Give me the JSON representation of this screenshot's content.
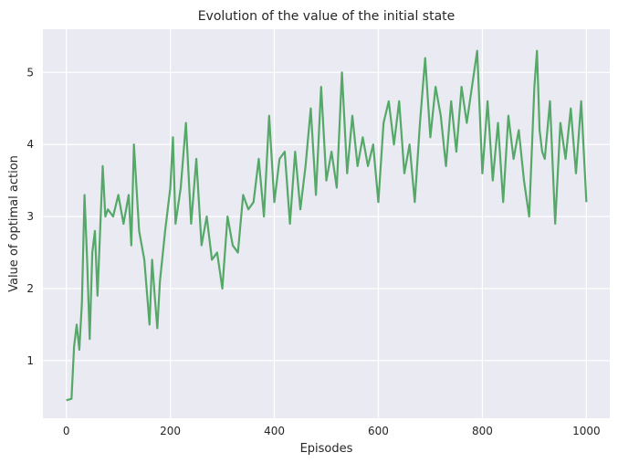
{
  "chart_data": {
    "type": "line",
    "title": "Evolution of the value of the initial state",
    "xlabel": "Episodes",
    "ylabel": "Value of optimal action",
    "xlim": [
      -45,
      1045
    ],
    "ylim": [
      0.2,
      5.6
    ],
    "xticks": [
      0,
      200,
      400,
      600,
      800,
      1000
    ],
    "yticks": [
      1,
      2,
      3,
      4,
      5
    ],
    "grid": true,
    "series": [
      {
        "name": "value",
        "color": "#55a868",
        "x": [
          0,
          10,
          15,
          20,
          25,
          30,
          35,
          40,
          45,
          50,
          55,
          60,
          65,
          70,
          75,
          80,
          90,
          100,
          110,
          120,
          125,
          130,
          140,
          150,
          160,
          165,
          170,
          175,
          180,
          190,
          200,
          205,
          210,
          220,
          230,
          240,
          250,
          260,
          270,
          280,
          290,
          300,
          310,
          320,
          330,
          340,
          350,
          360,
          370,
          380,
          390,
          400,
          410,
          420,
          430,
          440,
          450,
          460,
          470,
          480,
          490,
          500,
          510,
          520,
          530,
          540,
          550,
          560,
          570,
          580,
          590,
          600,
          610,
          620,
          630,
          640,
          650,
          660,
          670,
          680,
          690,
          700,
          710,
          720,
          730,
          740,
          750,
          760,
          770,
          780,
          790,
          800,
          810,
          820,
          830,
          840,
          850,
          860,
          870,
          880,
          890,
          900,
          905,
          910,
          915,
          920,
          930,
          940,
          950,
          960,
          970,
          980,
          990,
          1000
        ],
        "values": [
          0.45,
          0.47,
          1.2,
          1.5,
          1.15,
          1.8,
          3.3,
          2.4,
          1.3,
          2.5,
          2.8,
          1.9,
          2.8,
          3.7,
          3.0,
          3.1,
          3.0,
          3.3,
          2.9,
          3.3,
          2.6,
          4.0,
          2.8,
          2.4,
          1.5,
          2.4,
          1.9,
          1.45,
          2.1,
          2.8,
          3.4,
          4.1,
          2.9,
          3.4,
          4.3,
          2.9,
          3.8,
          2.6,
          3.0,
          2.4,
          2.5,
          2.0,
          3.0,
          2.6,
          2.5,
          3.3,
          3.1,
          3.2,
          3.8,
          3.0,
          4.4,
          3.2,
          3.8,
          3.9,
          2.9,
          3.9,
          3.1,
          3.7,
          4.5,
          3.3,
          4.8,
          3.5,
          3.9,
          3.4,
          5.0,
          3.6,
          4.4,
          3.7,
          4.1,
          3.7,
          4.0,
          3.2,
          4.3,
          4.6,
          4.0,
          4.6,
          3.6,
          4.0,
          3.2,
          4.3,
          5.2,
          4.1,
          4.8,
          4.4,
          3.7,
          4.6,
          3.9,
          4.8,
          4.3,
          4.8,
          5.3,
          3.6,
          4.6,
          3.5,
          4.3,
          3.2,
          4.4,
          3.8,
          4.2,
          3.5,
          3.0,
          4.8,
          5.3,
          4.2,
          3.9,
          3.8,
          4.6,
          2.9,
          4.3,
          3.8,
          4.5,
          3.6,
          4.6,
          3.2
        ]
      }
    ]
  }
}
